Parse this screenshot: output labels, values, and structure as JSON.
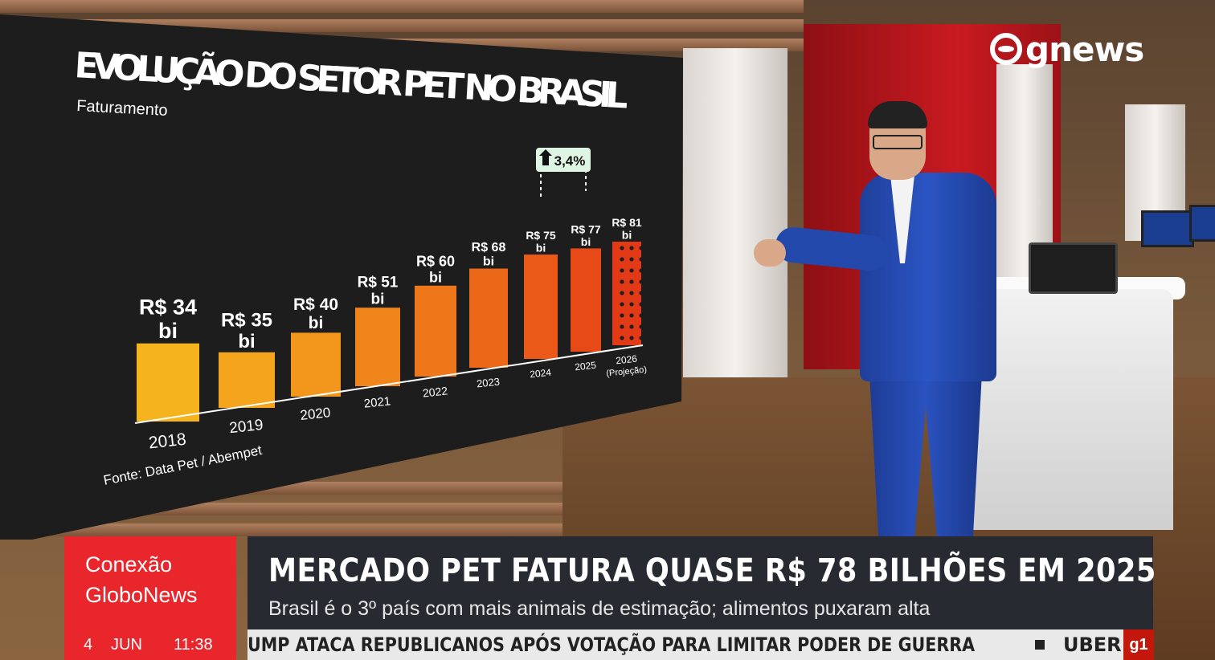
{
  "channel_logo": "gnews",
  "chart_data": {
    "type": "bar",
    "title": "EVOLUÇÃO DO SETOR PET NO BRASIL",
    "subtitle": "Faturamento",
    "categories": [
      "2018",
      "2019",
      "2020",
      "2021",
      "2022",
      "2023",
      "2024",
      "2025",
      "2026"
    ],
    "category_notes": [
      "",
      "",
      "",
      "",
      "",
      "",
      "",
      "",
      "(Projeção)"
    ],
    "values": [
      34,
      35,
      40,
      51,
      60,
      68,
      75,
      77,
      81
    ],
    "value_labels": [
      "R$ 34",
      "R$ 35",
      "R$ 40",
      "R$ 51",
      "R$ 60",
      "R$ 68",
      "R$ 75",
      "R$ 77",
      "R$ 81"
    ],
    "unit_label": "bi",
    "annotation": {
      "text": "3,4%",
      "between": [
        "2024",
        "2025"
      ],
      "icon": "arrow-up-icon"
    },
    "projected": [
      "2026"
    ],
    "colors": [
      "#f5b41e",
      "#f4a51d",
      "#f2961c",
      "#f0861b",
      "#ee771a",
      "#ec6819",
      "#ea5918",
      "#e84a17",
      "#e23a16"
    ],
    "source": "Fonte: Data Pet / Abempet"
  },
  "lower_third": {
    "show_name": "Conexão\nGloboNews",
    "date_day": "4",
    "date_month": "JUN",
    "time": "11:38",
    "headline": "MERCADO PET FATURA QUASE R$ 78 BILHÕES EM 2025",
    "subheadline": "Brasil é o 3º país com mais animais de estimação; alimentos puxaram alta",
    "ticker": "UMP ATACA REPUBLICANOS APÓS VOTAÇÃO PARA LIMITAR PODER DE GUERRA",
    "ticker_next": "UBER",
    "ticker_badge": "g1"
  }
}
